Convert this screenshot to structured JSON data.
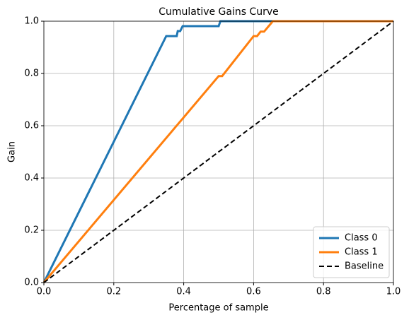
{
  "chart_data": {
    "type": "line",
    "title": "Cumulative Gains Curve",
    "xlabel": "Percentage of sample",
    "ylabel": "Gain",
    "xlim": [
      0,
      1
    ],
    "ylim": [
      0,
      1
    ],
    "xticks": [
      {
        "value": 0,
        "label": "0.0"
      },
      0.2,
      0.4,
      0.6,
      0.8,
      {
        "value": 1,
        "label": "1.0"
      }
    ],
    "yticks": [
      {
        "value": 0,
        "label": "0.0"
      },
      0.2,
      0.4,
      0.6,
      0.8,
      {
        "value": 1,
        "label": "1.0"
      }
    ],
    "grid": true,
    "legend": "lower right",
    "series": [
      {
        "name": "Class 0",
        "color": "#1f77b4",
        "linestyle": "solid",
        "linewidth": 3,
        "x": [
          0,
          0.35,
          0.38,
          0.383,
          0.39,
          0.397,
          0.5,
          0.505,
          1
        ],
        "values": [
          0,
          0.943,
          0.943,
          0.962,
          0.962,
          0.981,
          0.981,
          1,
          1
        ]
      },
      {
        "name": "Class 1",
        "color": "#ff7f0e",
        "linestyle": "solid",
        "linewidth": 3,
        "x": [
          0,
          0.5,
          0.51,
          0.6,
          0.61,
          0.62,
          0.63,
          0.655,
          1
        ],
        "values": [
          0,
          0.79,
          0.79,
          0.943,
          0.943,
          0.96,
          0.96,
          1,
          1
        ]
      },
      {
        "name": "Baseline",
        "color": "#000000",
        "linestyle": "dashed",
        "linewidth": 2,
        "x": [
          0,
          1
        ],
        "values": [
          0,
          1
        ]
      }
    ]
  }
}
